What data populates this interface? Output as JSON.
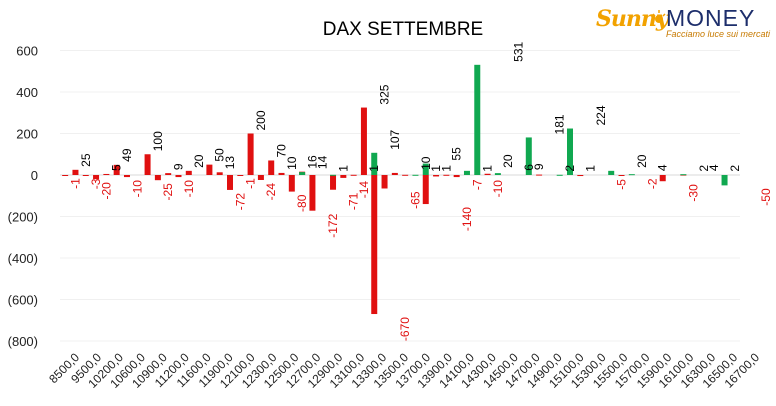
{
  "brand": {
    "name_left": "Sunny",
    "name_right": "MONEY",
    "tagline": "Facciamo luce sui mercati",
    "colors": {
      "sunny": "#f2a200",
      "money": "#1d2e6b",
      "tagline": "#c77a00"
    }
  },
  "chart_data": {
    "type": "bar",
    "title": "DAX SETTEMBRE",
    "xlabel": "",
    "ylabel": "",
    "ylim": [
      -800,
      600
    ],
    "yticks": [
      600,
      400,
      200,
      0,
      -200,
      -400,
      -600,
      -800
    ],
    "ytick_labels": [
      "600",
      "400",
      "200",
      "0",
      "(200)",
      "(400)",
      "(600)",
      "(800)"
    ],
    "xtick_labels": [
      "8500,0",
      "9500,0",
      "10200,0",
      "10600,0",
      "10900,0",
      "11200,0",
      "11600,0",
      "11900,0",
      "12100,0",
      "12300,0",
      "12500,0",
      "12700,0",
      "12900,0",
      "13100,0",
      "13300,0",
      "13500,0",
      "13700,0",
      "13900,0",
      "14100,0",
      "14300,0",
      "14500,0",
      "14700,0",
      "14900,0",
      "15100,0",
      "15300,0",
      "15500,0",
      "15700,0",
      "15900,0",
      "16100,0",
      "16300,0",
      "16500,0",
      "16700,0"
    ],
    "grid": true,
    "colors": {
      "red": "#e01010",
      "green": "#10a850",
      "axis_text": "#222222",
      "negative_label": "#e01010"
    },
    "series": [
      {
        "color": "red",
        "values": [
          -1,
          25,
          -3,
          -20,
          5,
          49,
          -10,
          0,
          100,
          -25,
          9,
          -10,
          20,
          0,
          50,
          13,
          -72,
          -1,
          200,
          -24,
          70,
          10,
          -80,
          16,
          -172,
          0,
          -71,
          -14,
          1,
          325,
          -670,
          -65,
          10,
          1,
          0,
          -140,
          -7,
          1,
          -10,
          0,
          0,
          6,
          0,
          0,
          0,
          0,
          2,
          0,
          0,
          0,
          -5,
          0,
          0,
          0,
          -2,
          0,
          0,
          0,
          -30,
          0,
          2,
          0,
          0,
          0,
          0,
          0
        ]
      },
      {
        "color": "green",
        "values": [
          0,
          0,
          0,
          0,
          0,
          0,
          0,
          0,
          0,
          0,
          0,
          0,
          0,
          0,
          0,
          0,
          0,
          0,
          0,
          0,
          0,
          0,
          0,
          14,
          0,
          0,
          1,
          0,
          0,
          0,
          107,
          0,
          0,
          0,
          1,
          55,
          0,
          0,
          0,
          20,
          531,
          0,
          9,
          0,
          0,
          181,
          0,
          0,
          1,
          224,
          0,
          0,
          0,
          20,
          0,
          4,
          0,
          0,
          0,
          0,
          4,
          0,
          0,
          0,
          -50,
          0
        ]
      }
    ],
    "data_labels": [
      {
        "text": "-1",
        "slot": 1,
        "value": -1,
        "color": "red"
      },
      {
        "text": "25",
        "slot": 2,
        "value": 25,
        "color": "red"
      },
      {
        "text": "-3",
        "slot": 3,
        "value": -3,
        "color": "red"
      },
      {
        "text": "-20",
        "slot": 4,
        "value": -20,
        "color": "red"
      },
      {
        "text": "5",
        "slot": 5,
        "value": 5,
        "color": "red"
      },
      {
        "text": "49",
        "slot": 6,
        "value": 49,
        "color": "red"
      },
      {
        "text": "-10",
        "slot": 7,
        "value": -10,
        "color": "red"
      },
      {
        "text": "100",
        "slot": 9,
        "value": 100,
        "color": "red"
      },
      {
        "text": "-25",
        "slot": 10,
        "value": -25,
        "color": "red"
      },
      {
        "text": "9",
        "slot": 11,
        "value": 9,
        "color": "red"
      },
      {
        "text": "-10",
        "slot": 12,
        "value": -10,
        "color": "red"
      },
      {
        "text": "20",
        "slot": 13,
        "value": 20,
        "color": "red"
      },
      {
        "text": "50",
        "slot": 15,
        "value": 50,
        "color": "red"
      },
      {
        "text": "13",
        "slot": 16,
        "value": 13,
        "color": "red"
      },
      {
        "text": "-72",
        "slot": 17,
        "value": -72,
        "color": "red"
      },
      {
        "text": "-1",
        "slot": 18,
        "value": -1,
        "color": "red"
      },
      {
        "text": "200",
        "slot": 19,
        "value": 200,
        "color": "red"
      },
      {
        "text": "-24",
        "slot": 20,
        "value": -24,
        "color": "red"
      },
      {
        "text": "70",
        "slot": 21,
        "value": 70,
        "color": "red"
      },
      {
        "text": "10",
        "slot": 22,
        "value": 10,
        "color": "red"
      },
      {
        "text": "-80",
        "slot": 23,
        "value": -80,
        "color": "red"
      },
      {
        "text": "16",
        "slot": 24,
        "value": 16,
        "color": "red"
      },
      {
        "text": "14",
        "slot": 25,
        "value": 14,
        "color": "green"
      },
      {
        "text": "-172",
        "slot": 26,
        "value": -172,
        "color": "red"
      },
      {
        "text": "1",
        "slot": 27,
        "value": 1,
        "color": "green"
      },
      {
        "text": "-71",
        "slot": 28,
        "value": -71,
        "color": "red"
      },
      {
        "text": "-14",
        "slot": 29,
        "value": -14,
        "color": "red"
      },
      {
        "text": "1",
        "slot": 30,
        "value": 1,
        "color": "red"
      },
      {
        "text": "325",
        "slot": 31,
        "value": 325,
        "color": "red"
      },
      {
        "text": "107",
        "slot": 32,
        "value": 107,
        "color": "green"
      },
      {
        "text": "-670",
        "slot": 33,
        "value": -670,
        "color": "red"
      },
      {
        "text": "-65",
        "slot": 34,
        "value": -65,
        "color": "red"
      },
      {
        "text": "10",
        "slot": 35,
        "value": 10,
        "color": "red"
      },
      {
        "text": "1",
        "slot": 36,
        "value": 1,
        "color": "green"
      },
      {
        "text": "1",
        "slot": 37,
        "value": 1,
        "color": "red"
      },
      {
        "text": "55",
        "slot": 38,
        "value": 55,
        "color": "green"
      },
      {
        "text": "-140",
        "slot": 39,
        "value": -140,
        "color": "red"
      },
      {
        "text": "-7",
        "slot": 40,
        "value": -7,
        "color": "red"
      },
      {
        "text": "1",
        "slot": 41,
        "value": 1,
        "color": "red"
      },
      {
        "text": "-10",
        "slot": 42,
        "value": -10,
        "color": "red"
      },
      {
        "text": "20",
        "slot": 43,
        "value": 20,
        "color": "green"
      },
      {
        "text": "531",
        "slot": 44,
        "value": 531,
        "color": "green"
      },
      {
        "text": "6",
        "slot": 45,
        "value": 6,
        "color": "red"
      },
      {
        "text": "9",
        "slot": 46,
        "value": 9,
        "color": "green"
      },
      {
        "text": "181",
        "slot": 48,
        "value": 181,
        "color": "green"
      },
      {
        "text": "2",
        "slot": 49,
        "value": 2,
        "color": "red"
      },
      {
        "text": "1",
        "slot": 51,
        "value": 1,
        "color": "green"
      },
      {
        "text": "224",
        "slot": 52,
        "value": 224,
        "color": "green"
      },
      {
        "text": "-5",
        "slot": 54,
        "value": -5,
        "color": "red"
      },
      {
        "text": "20",
        "slot": 56,
        "value": 20,
        "color": "green"
      },
      {
        "text": "-2",
        "slot": 57,
        "value": -2,
        "color": "red"
      },
      {
        "text": "4",
        "slot": 58,
        "value": 4,
        "color": "green"
      },
      {
        "text": "-30",
        "slot": 61,
        "value": -30,
        "color": "red"
      },
      {
        "text": "2",
        "slot": 62,
        "value": 2,
        "color": "red"
      },
      {
        "text": "4",
        "slot": 63,
        "value": 4,
        "color": "green"
      },
      {
        "text": "2",
        "slot": 65,
        "value": 2,
        "color": "red"
      },
      {
        "text": "-50",
        "slot": 68,
        "value": -50,
        "color": "green"
      }
    ]
  }
}
